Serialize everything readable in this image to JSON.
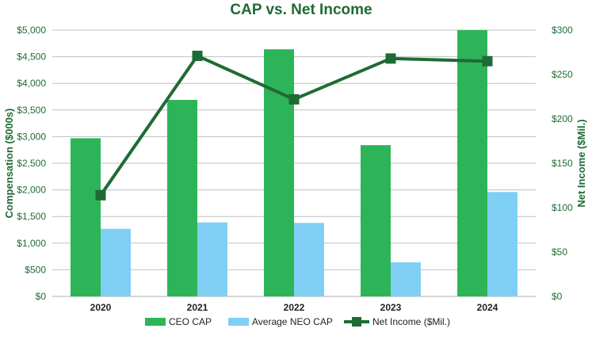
{
  "chart_data": {
    "type": "bar",
    "title": "CAP vs. Net Income",
    "categories": [
      "2020",
      "2021",
      "2022",
      "2023",
      "2024"
    ],
    "series": [
      {
        "name": "CEO CAP",
        "type": "bar",
        "axis": "left",
        "color": "#2eb458",
        "values": [
          2970,
          3690,
          4640,
          2840,
          5000
        ]
      },
      {
        "name": "Average NEO CAP",
        "type": "bar",
        "axis": "left",
        "color": "#7fcff5",
        "values": [
          1270,
          1390,
          1380,
          640,
          1960
        ]
      },
      {
        "name": "Net Income ($Mil.)",
        "type": "line",
        "axis": "right",
        "color": "#1e6b35",
        "values": [
          114,
          271,
          222,
          268,
          265
        ]
      }
    ],
    "ylabel": "Compensation ($000s)",
    "y2label": "Net Income ($Mil.)",
    "ylim": [
      0,
      5000
    ],
    "y2lim": [
      0,
      300
    ],
    "yticks": [
      "$0",
      "$500",
      "$1,000",
      "$1,500",
      "$2,000",
      "$2,500",
      "$3,000",
      "$3,500",
      "$4,000",
      "$4,500",
      "$5,000"
    ],
    "y2ticks": [
      "$0",
      "$50",
      "$100",
      "$150",
      "$200",
      "$250",
      "$300"
    ],
    "grid": true,
    "legend_position": "bottom"
  }
}
